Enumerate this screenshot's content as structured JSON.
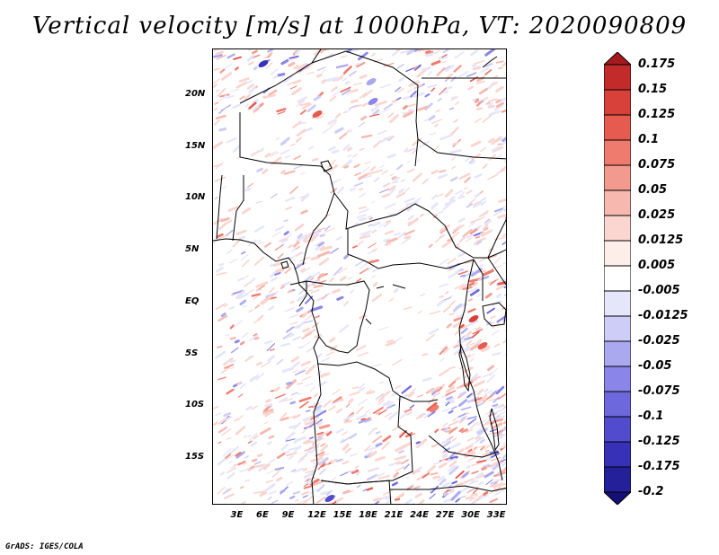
{
  "title": "Vertical velocity [m/s] at 1000hPa, VT: 2020090809",
  "credit": "GrADS: IGES/COLA",
  "map": {
    "lon_range": [
      0,
      34.5
    ],
    "lat_range": [
      -19.5,
      24.5
    ],
    "lon_ticks": [
      {
        "value": 3,
        "label": "3E"
      },
      {
        "value": 6,
        "label": "6E"
      },
      {
        "value": 9,
        "label": "9E"
      },
      {
        "value": 12,
        "label": "12E"
      },
      {
        "value": 15,
        "label": "15E"
      },
      {
        "value": 18,
        "label": "18E"
      },
      {
        "value": 21,
        "label": "21E"
      },
      {
        "value": 24,
        "label": "24E"
      },
      {
        "value": 27,
        "label": "27E"
      },
      {
        "value": 30,
        "label": "30E"
      },
      {
        "value": 33,
        "label": "33E"
      }
    ],
    "lat_ticks": [
      {
        "value": 20,
        "label": "20N"
      },
      {
        "value": 15,
        "label": "15N"
      },
      {
        "value": 10,
        "label": "10N"
      },
      {
        "value": 5,
        "label": "5N"
      },
      {
        "value": 0,
        "label": "EQ"
      },
      {
        "value": -5,
        "label": "5S"
      },
      {
        "value": -10,
        "label": "10S"
      },
      {
        "value": -15,
        "label": "15S"
      }
    ]
  },
  "colorbar": {
    "levels": [
      "0.175",
      "0.15",
      "0.125",
      "0.1",
      "0.075",
      "0.05",
      "0.025",
      "0.0125",
      "0.005",
      "-0.005",
      "-0.0125",
      "-0.025",
      "-0.05",
      "-0.075",
      "-0.1",
      "-0.125",
      "-0.175",
      "-0.2"
    ],
    "colors": [
      "#a51a1f",
      "#c32a2a",
      "#d8413a",
      "#e55b4f",
      "#ee7b6d",
      "#f29a8d",
      "#f7b9af",
      "#fbd6d0",
      "#fdeeea",
      "#ffffff",
      "#e6e6fb",
      "#cdcdf7",
      "#aaa9f0",
      "#8a85e8",
      "#6d68dc",
      "#514bcd",
      "#3631b7",
      "#23209a",
      "#160f78"
    ]
  }
}
